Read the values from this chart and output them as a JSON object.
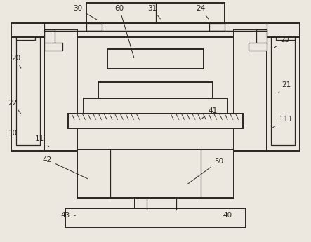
{
  "bg": "#ede8df",
  "lc": "#2a2520",
  "lw": 1.4,
  "tlw": 0.9,
  "fs": 7.5,
  "coords": {
    "xlim": [
      0,
      100
    ],
    "ylim": [
      0,
      80
    ]
  },
  "labels": {
    "20": [
      3.5,
      61.0,
      5.5,
      57.0
    ],
    "30": [
      24.0,
      77.5,
      31.0,
      73.5
    ],
    "60": [
      38.0,
      77.5,
      43.0,
      60.5
    ],
    "31": [
      49.0,
      77.5,
      52.0,
      73.5
    ],
    "24": [
      65.0,
      77.5,
      68.0,
      73.5
    ],
    "23": [
      93.0,
      67.0,
      89.0,
      64.0
    ],
    "21": [
      93.5,
      52.0,
      90.5,
      49.0
    ],
    "22": [
      2.5,
      46.0,
      5.5,
      42.0
    ],
    "10": [
      2.5,
      36.0,
      4.0,
      33.0
    ],
    "11": [
      11.5,
      34.0,
      14.5,
      31.5
    ],
    "42": [
      14.0,
      27.0,
      28.0,
      20.5
    ],
    "41": [
      69.0,
      43.5,
      65.0,
      40.5
    ],
    "111": [
      93.5,
      40.5,
      88.5,
      37.5
    ],
    "50": [
      71.0,
      26.5,
      60.0,
      18.5
    ],
    "40": [
      74.0,
      8.5,
      72.0,
      8.5
    ],
    "43": [
      20.0,
      8.5,
      24.0,
      8.5
    ]
  }
}
